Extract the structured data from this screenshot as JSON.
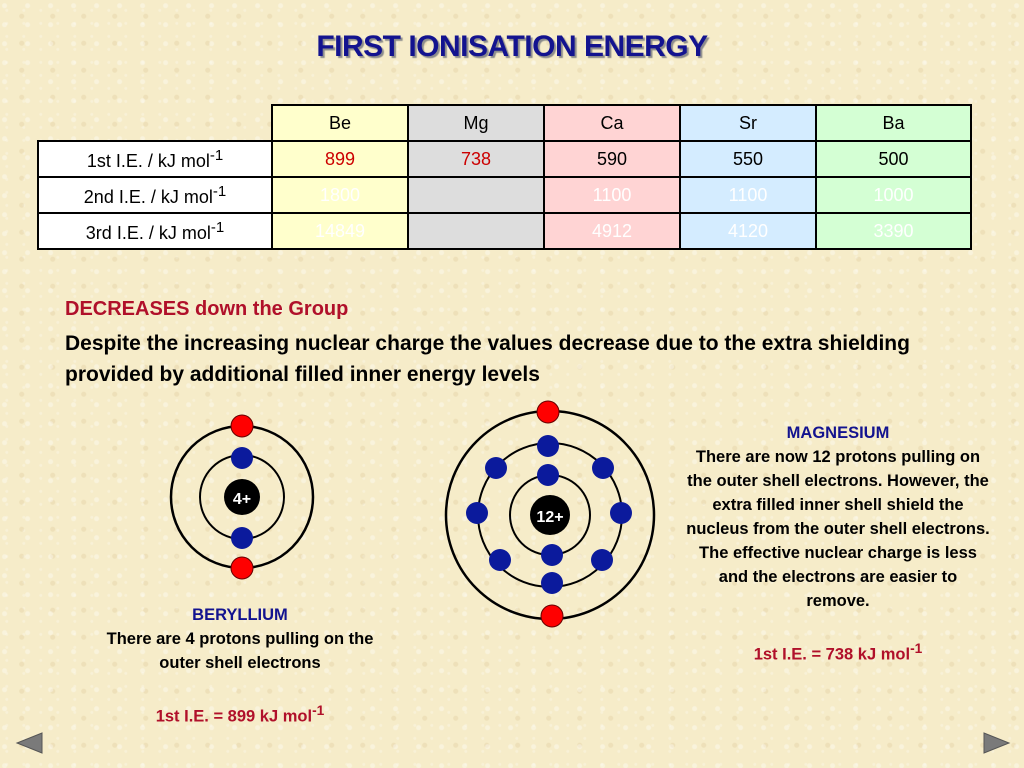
{
  "title": "FIRST IONISATION ENERGY",
  "table": {
    "columns": [
      "Be",
      "Mg",
      "Ca",
      "Sr",
      "Ba"
    ],
    "rows": [
      {
        "label": "1st I.E. / kJ mol",
        "sup": "-1",
        "values": [
          "899",
          "738",
          "590",
          "550",
          "500"
        ]
      },
      {
        "label": "2nd I.E. / kJ mol",
        "sup": "-1",
        "values": [
          "1800",
          "",
          "1100",
          "1100",
          "1000"
        ]
      },
      {
        "label": "3rd I.E. / kJ mol",
        "sup": "-1",
        "values": [
          "14849",
          "",
          "4912",
          "4120",
          "3390"
        ]
      }
    ]
  },
  "subheading": "DECREASES down the Group",
  "explanation": "Despite the increasing nuclear charge the values decrease due to the extra shielding provided by additional filled inner energy levels",
  "beryllium": {
    "nucleus": "4+",
    "name": "BERYLLIUM",
    "text": "There are 4 protons pulling on the outer shell electrons",
    "ie_label": "1st I.E. = 899 kJ mol",
    "ie_sup": "-1"
  },
  "magnesium": {
    "nucleus": "12+",
    "name": "MAGNESIUM",
    "text": "There are now 12 protons pulling on the outer shell electrons. However, the extra filled inner shell shield the nucleus from the outer shell electrons. The effective nuclear charge is less and the electrons are easier to remove.",
    "ie_label": "1st I.E. = 738 kJ mol",
    "ie_sup": "-1"
  },
  "colors": {
    "title": "#13138f",
    "accent_red": "#b0102a",
    "outer_electron": "#ff0000",
    "inner_electron": "#0b1a9c"
  }
}
